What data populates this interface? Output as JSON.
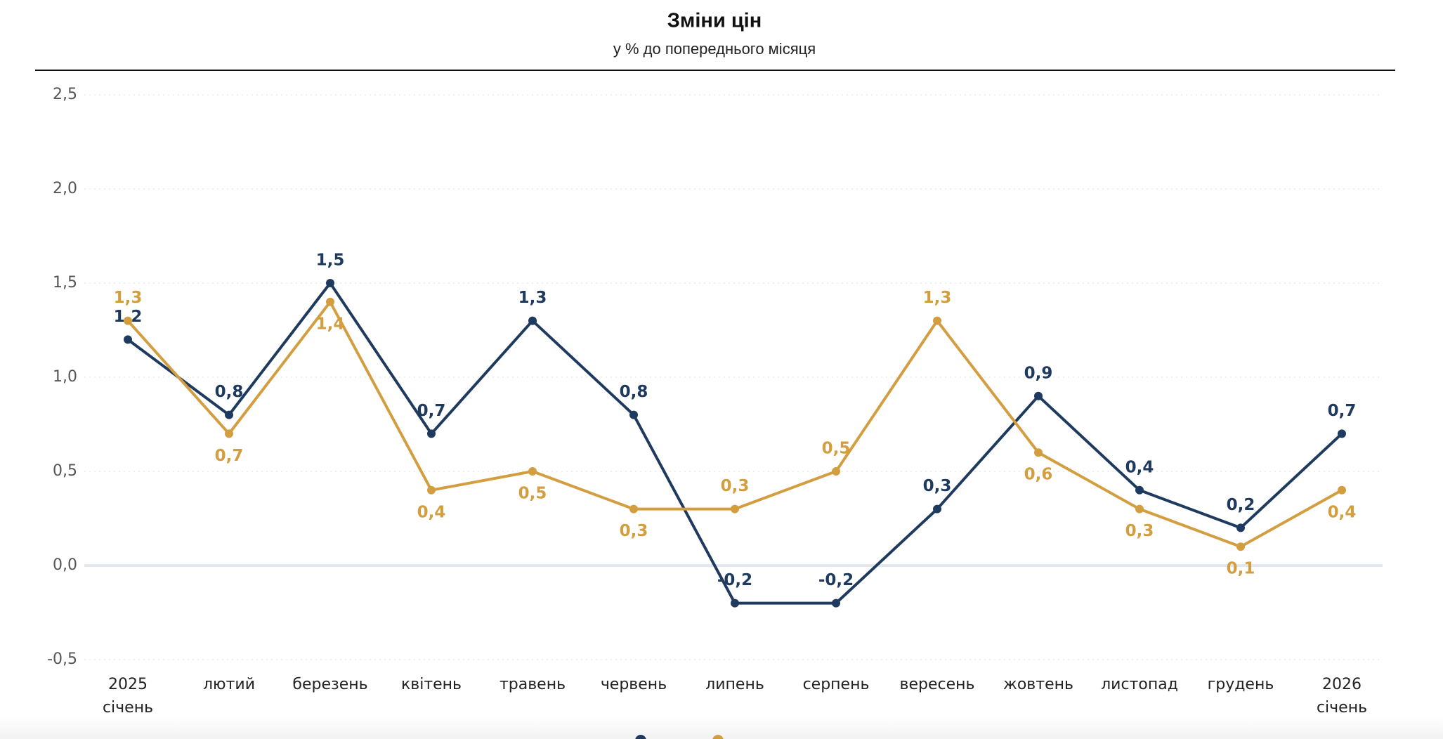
{
  "chart_data": {
    "type": "line",
    "title": "Зміни цін",
    "subtitle": "у % до попереднього місяця",
    "categories": [
      "2025\nсічень",
      "лютий",
      "березень",
      "квітень",
      "травень",
      "червень",
      "липень",
      "серпень",
      "вересень",
      "жовтень",
      "листопад",
      "грудень",
      "2026\nсічень"
    ],
    "series": [
      {
        "color": "#1f3a5f",
        "values": [
          1.2,
          0.8,
          1.5,
          0.7,
          1.3,
          0.8,
          -0.2,
          -0.2,
          0.3,
          0.9,
          0.4,
          0.2,
          0.7
        ],
        "value_labels": [
          "1,2",
          "0,8",
          "1,5",
          "0,7",
          "1,3",
          "0,8",
          "-0,2",
          "-0,2",
          "0,3",
          "0,9",
          "0,4",
          "0,2",
          "0,7"
        ]
      },
      {
        "color": "#d39e3f",
        "values": [
          1.3,
          0.7,
          1.4,
          0.4,
          0.5,
          0.3,
          0.3,
          0.5,
          1.3,
          0.6,
          0.3,
          0.1,
          0.4
        ],
        "value_labels": [
          "1,3",
          "0,7",
          "1,4",
          "0,4",
          "0,5",
          "0,3",
          "0,3",
          "0,5",
          "1,3",
          "0,6",
          "0,3",
          "0,1",
          "0,4"
        ]
      }
    ],
    "ylim": [
      -0.5,
      2.5
    ],
    "yticks": [
      {
        "value": -0.5,
        "label": "-0,5"
      },
      {
        "value": 0,
        "label": "0,0"
      },
      {
        "value": 0.5,
        "label": "0,5"
      },
      {
        "value": 1,
        "label": "1,0"
      },
      {
        "value": 1.5,
        "label": "1,5"
      },
      {
        "value": 2,
        "label": "2,0"
      },
      {
        "value": 2.5,
        "label": "2,5"
      }
    ],
    "grid": true
  }
}
